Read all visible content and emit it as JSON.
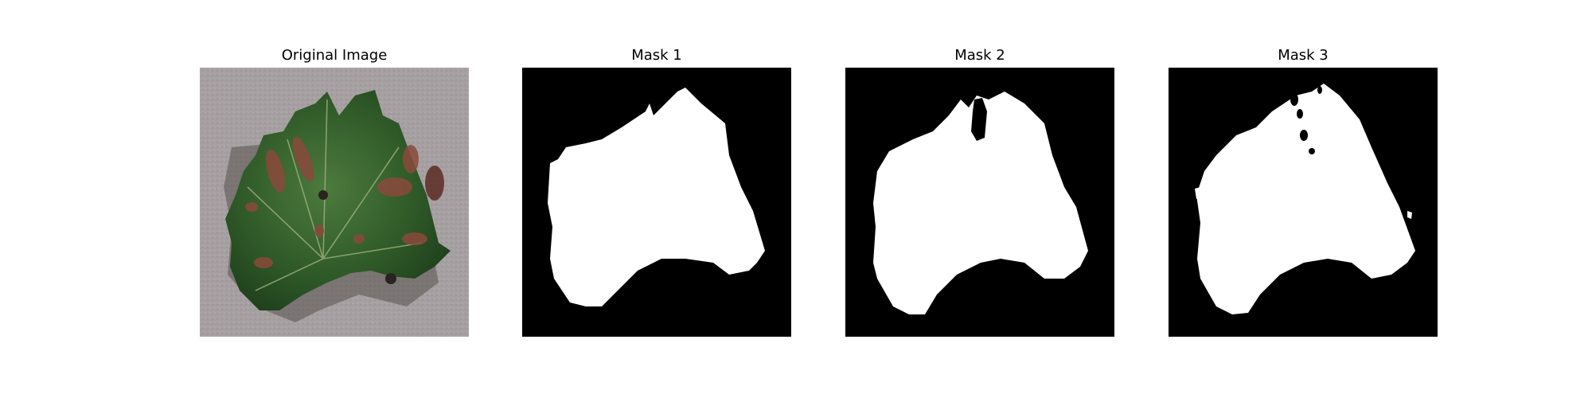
{
  "figure": {
    "panels": [
      {
        "title": "Original Image"
      },
      {
        "title": "Mask 1"
      },
      {
        "title": "Mask 2"
      },
      {
        "title": "Mask 3"
      }
    ]
  },
  "colors": {
    "background": "#ffffff",
    "mask_background": "#000000",
    "mask_foreground": "#ffffff",
    "leaf_green": "#2f5a28",
    "lesion_brown": "#8a4a3c",
    "surface_gray": "#a39c9e"
  }
}
